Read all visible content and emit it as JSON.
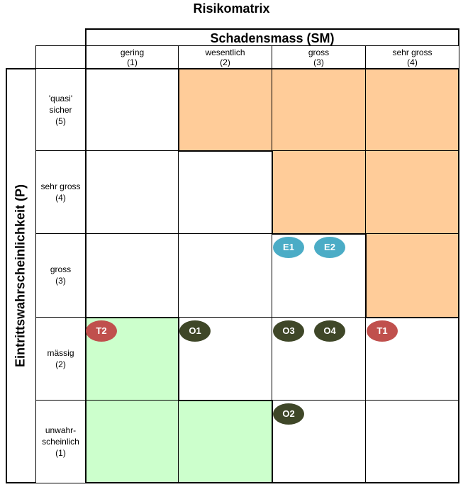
{
  "title": "Risikomatrix",
  "x_axis": {
    "title": "Schadensmass (SM)",
    "columns": [
      {
        "label": "gering",
        "num": "(1)"
      },
      {
        "label": "wesentlich",
        "num": "(2)"
      },
      {
        "label": "gross",
        "num": "(3)"
      },
      {
        "label": "sehr gross",
        "num": "(4)"
      }
    ]
  },
  "y_axis": {
    "title": "Eintrittswahrscheinlichkeit (P)",
    "rows": [
      {
        "lines": [
          "'quasi'",
          "sicher"
        ],
        "num": "(5)"
      },
      {
        "lines": [
          "sehr gross"
        ],
        "num": "(4)"
      },
      {
        "lines": [
          "gross"
        ],
        "num": "(3)"
      },
      {
        "lines": [
          "mässig"
        ],
        "num": "(2)"
      },
      {
        "lines": [
          "unwahr-",
          "scheinlich"
        ],
        "num": "(1)"
      }
    ]
  },
  "zone_colors": {
    "high": "#ffcc99",
    "low": "#ccffcc",
    "neutral": "#ffffff"
  },
  "cells": [
    [
      "neutral",
      "high",
      "high",
      "high"
    ],
    [
      "neutral",
      "neutral",
      "high",
      "high"
    ],
    [
      "neutral",
      "neutral",
      "neutral",
      "high"
    ],
    [
      "low",
      "neutral",
      "neutral",
      "neutral"
    ],
    [
      "low",
      "low",
      "neutral",
      "neutral"
    ]
  ],
  "risks": [
    {
      "label": "E1",
      "sm": 3,
      "p": 3,
      "color": "#4bacc6",
      "slot": 0
    },
    {
      "label": "E2",
      "sm": 3,
      "p": 3,
      "color": "#4bacc6",
      "slot": 1
    },
    {
      "label": "T2",
      "sm": 1,
      "p": 2,
      "color": "#c0504d",
      "slot": 0
    },
    {
      "label": "O1",
      "sm": 2,
      "p": 2,
      "color": "#3f4728",
      "slot": 0
    },
    {
      "label": "O3",
      "sm": 3,
      "p": 2,
      "color": "#3f4728",
      "slot": 0
    },
    {
      "label": "O4",
      "sm": 3,
      "p": 2,
      "color": "#3f4728",
      "slot": 1
    },
    {
      "label": "T1",
      "sm": 4,
      "p": 2,
      "color": "#c0504d",
      "slot": 0
    },
    {
      "label": "O2",
      "sm": 3,
      "p": 1,
      "color": "#3f4728",
      "slot": 0
    }
  ]
}
